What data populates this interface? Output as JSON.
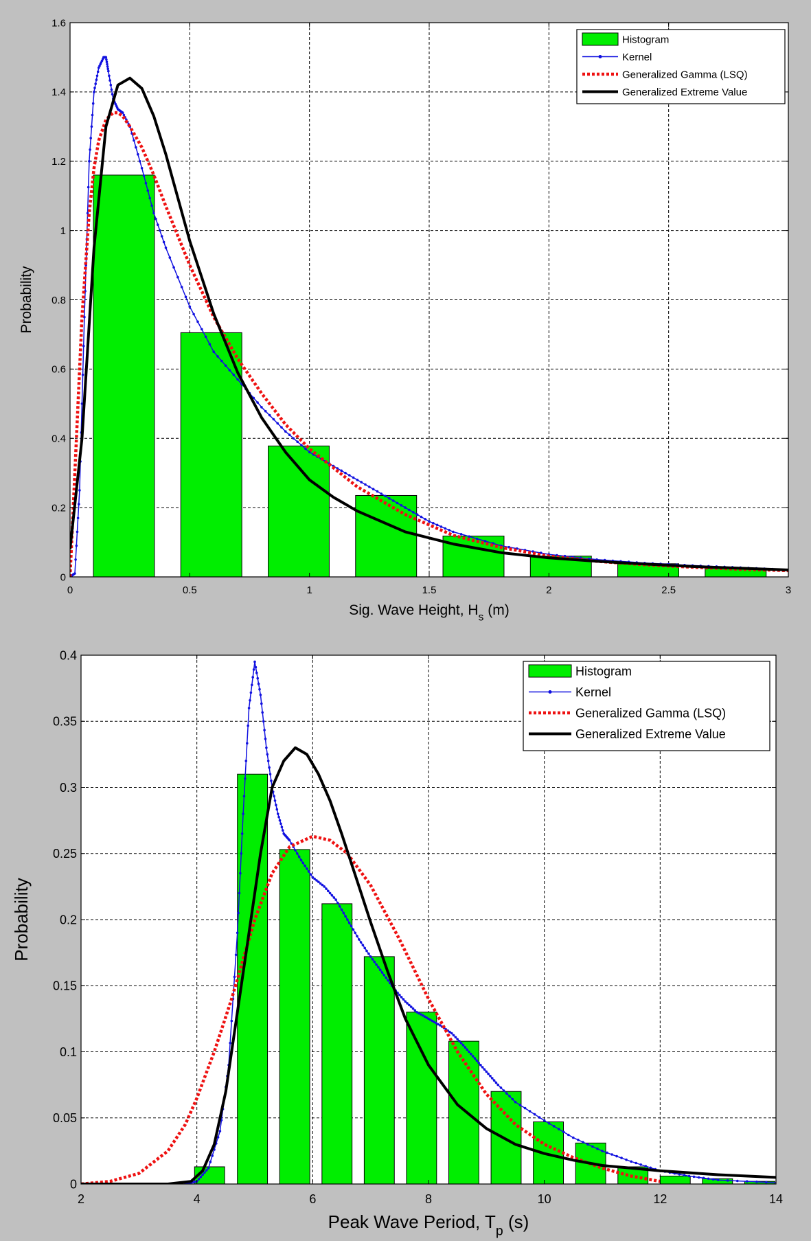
{
  "chart_data": [
    {
      "type": "bar",
      "xlabel": "Sig. Wave Height, H",
      "xlabel_sub": "s",
      "xlabel_suffix": " (m)",
      "ylabel": "Probability",
      "xlim": [
        0,
        3
      ],
      "ylim": [
        0,
        1.6
      ],
      "xticks": [
        0,
        0.5,
        1,
        1.5,
        2,
        2.5,
        3
      ],
      "xtick_labels": [
        "0",
        "0.5",
        "1",
        "1.5",
        "2",
        "2.5",
        "3"
      ],
      "yticks": [
        0,
        0.2,
        0.4,
        0.6,
        0.8,
        1,
        1.2,
        1.4,
        1.6
      ],
      "ytick_labels": [
        "0",
        "0.2",
        "0.4",
        "0.6",
        "0.8",
        "1",
        "1.2",
        "1.4",
        "1.6"
      ],
      "grid": true,
      "legend_position": "top-right",
      "legend": [
        "Histogram",
        "Kernel",
        "Generalized Gamma (LSQ)",
        "Generalized Extreme Value"
      ],
      "bar_width": 0.255,
      "bars": {
        "name": "Histogram",
        "color": "#00ee00",
        "x": [
          0.225,
          0.59,
          0.955,
          1.32,
          1.685,
          2.05,
          2.415,
          2.78
        ],
        "values": [
          1.16,
          0.705,
          0.378,
          0.235,
          0.118,
          0.06,
          0.038,
          0.025
        ]
      },
      "series": [
        {
          "name": "Kernel",
          "color": "#1010e0",
          "style": "line-dots",
          "x": [
            0,
            0.02,
            0.04,
            0.06,
            0.08,
            0.1,
            0.12,
            0.14,
            0.15,
            0.16,
            0.18,
            0.2,
            0.22,
            0.25,
            0.3,
            0.35,
            0.4,
            0.5,
            0.6,
            0.7,
            0.8,
            0.9,
            1.0,
            1.1,
            1.2,
            1.3,
            1.4,
            1.5,
            1.6,
            1.8,
            2.0,
            2.2,
            2.4,
            2.6,
            2.8,
            3.0
          ],
          "y": [
            0.0,
            0.01,
            0.25,
            0.75,
            1.2,
            1.4,
            1.47,
            1.5,
            1.5,
            1.46,
            1.38,
            1.35,
            1.34,
            1.3,
            1.18,
            1.05,
            0.95,
            0.78,
            0.65,
            0.57,
            0.49,
            0.42,
            0.36,
            0.32,
            0.28,
            0.24,
            0.2,
            0.16,
            0.13,
            0.09,
            0.065,
            0.05,
            0.04,
            0.033,
            0.027,
            0.02
          ]
        },
        {
          "name": "Generalized Gamma (LSQ)",
          "color": "#ee1111",
          "style": "dotted",
          "x": [
            0,
            0.02,
            0.05,
            0.08,
            0.1,
            0.12,
            0.15,
            0.18,
            0.2,
            0.22,
            0.25,
            0.3,
            0.35,
            0.4,
            0.5,
            0.6,
            0.7,
            0.8,
            0.9,
            1.0,
            1.2,
            1.4,
            1.6,
            1.8,
            2.0,
            2.2,
            2.4,
            2.6,
            2.8,
            3.0
          ],
          "y": [
            0.0,
            0.3,
            0.75,
            1.05,
            1.18,
            1.26,
            1.32,
            1.34,
            1.34,
            1.33,
            1.3,
            1.24,
            1.16,
            1.07,
            0.9,
            0.75,
            0.63,
            0.53,
            0.44,
            0.37,
            0.26,
            0.18,
            0.12,
            0.085,
            0.06,
            0.045,
            0.035,
            0.028,
            0.022,
            0.018
          ]
        },
        {
          "name": "Generalized Extreme Value",
          "color": "#000000",
          "style": "solid-thick",
          "x": [
            0,
            0.05,
            0.1,
            0.15,
            0.2,
            0.25,
            0.3,
            0.35,
            0.4,
            0.5,
            0.6,
            0.7,
            0.8,
            0.9,
            1.0,
            1.1,
            1.2,
            1.4,
            1.6,
            1.8,
            2.0,
            2.2,
            2.4,
            2.6,
            2.8,
            3.0
          ],
          "y": [
            0.08,
            0.4,
            0.95,
            1.3,
            1.42,
            1.44,
            1.41,
            1.33,
            1.22,
            0.97,
            0.76,
            0.59,
            0.46,
            0.36,
            0.28,
            0.23,
            0.19,
            0.13,
            0.095,
            0.07,
            0.055,
            0.045,
            0.037,
            0.03,
            0.025,
            0.02
          ]
        }
      ]
    },
    {
      "type": "bar",
      "xlabel": "Peak Wave Period, T",
      "xlabel_sub": "p",
      "xlabel_suffix": " (s)",
      "ylabel": "Probability",
      "xlim": [
        2,
        14
      ],
      "ylim": [
        0,
        0.4
      ],
      "xticks": [
        2,
        4,
        6,
        8,
        10,
        12,
        14
      ],
      "xtick_labels": [
        "2",
        "4",
        "6",
        "8",
        "10",
        "12",
        "14"
      ],
      "yticks": [
        0,
        0.05,
        0.1,
        0.15,
        0.2,
        0.25,
        0.3,
        0.35,
        0.4
      ],
      "ytick_labels": [
        "0",
        "0.05",
        "0.1",
        "0.15",
        "0.2",
        "0.25",
        "0.3",
        "0.35",
        "0.4"
      ],
      "grid": true,
      "legend_position": "top-right",
      "legend": [
        "Histogram",
        "Kernel",
        "Generalized Gamma (LSQ)",
        "Generalized Extreme Value"
      ],
      "bar_width": 0.52,
      "bars": {
        "name": "Histogram",
        "color": "#00ee00",
        "x": [
          4.22,
          4.96,
          5.69,
          6.42,
          7.15,
          7.88,
          8.61,
          9.34,
          10.07,
          10.8,
          11.53,
          12.26,
          12.99,
          13.72
        ],
        "values": [
          0.013,
          0.31,
          0.253,
          0.212,
          0.172,
          0.13,
          0.108,
          0.07,
          0.047,
          0.031,
          0.013,
          0.006,
          0.004,
          0.002
        ]
      },
      "series": [
        {
          "name": "Kernel",
          "color": "#1010e0",
          "style": "line-dots",
          "x": [
            3.8,
            4.0,
            4.2,
            4.4,
            4.55,
            4.7,
            4.8,
            4.9,
            5.0,
            5.1,
            5.2,
            5.3,
            5.4,
            5.5,
            5.6,
            5.8,
            6.0,
            6.2,
            6.4,
            6.6,
            6.8,
            7.0,
            7.2,
            7.4,
            7.6,
            7.8,
            8.0,
            8.2,
            8.4,
            8.6,
            8.8,
            9.0,
            9.2,
            9.5,
            10.0,
            10.5,
            11.0,
            11.5,
            12.0,
            12.5,
            13.0,
            14.0
          ],
          "y": [
            0.0,
            0.002,
            0.012,
            0.04,
            0.09,
            0.19,
            0.28,
            0.36,
            0.395,
            0.37,
            0.33,
            0.3,
            0.28,
            0.265,
            0.26,
            0.245,
            0.232,
            0.225,
            0.215,
            0.2,
            0.185,
            0.172,
            0.16,
            0.148,
            0.138,
            0.13,
            0.125,
            0.12,
            0.114,
            0.105,
            0.095,
            0.085,
            0.075,
            0.062,
            0.048,
            0.035,
            0.025,
            0.017,
            0.01,
            0.006,
            0.003,
            0.001
          ]
        },
        {
          "name": "Generalized Gamma (LSQ)",
          "color": "#ee1111",
          "style": "dotted",
          "x": [
            2.0,
            2.5,
            3.0,
            3.5,
            3.8,
            4.0,
            4.3,
            4.6,
            5.0,
            5.3,
            5.6,
            6.0,
            6.3,
            6.6,
            7.0,
            7.5,
            8.0,
            8.5,
            9.0,
            9.5,
            10.0,
            10.5,
            11.0,
            11.5,
            12.0
          ],
          "y": [
            0.0,
            0.002,
            0.008,
            0.025,
            0.045,
            0.065,
            0.1,
            0.14,
            0.2,
            0.235,
            0.255,
            0.263,
            0.26,
            0.25,
            0.226,
            0.185,
            0.14,
            0.1,
            0.068,
            0.045,
            0.03,
            0.02,
            0.012,
            0.006,
            0.002
          ]
        },
        {
          "name": "Generalized Extreme Value",
          "color": "#000000",
          "style": "solid-thick",
          "x": [
            2.0,
            3.0,
            3.5,
            3.9,
            4.1,
            4.3,
            4.5,
            4.7,
            4.9,
            5.1,
            5.3,
            5.5,
            5.7,
            5.9,
            6.1,
            6.3,
            6.5,
            6.8,
            7.0,
            7.3,
            7.6,
            8.0,
            8.5,
            9.0,
            9.5,
            10.0,
            10.5,
            11.0,
            12.0,
            13.0,
            14.0
          ],
          "y": [
            0.0,
            0.0,
            0.0,
            0.002,
            0.01,
            0.03,
            0.07,
            0.13,
            0.19,
            0.25,
            0.3,
            0.32,
            0.33,
            0.325,
            0.31,
            0.29,
            0.265,
            0.225,
            0.198,
            0.16,
            0.125,
            0.09,
            0.06,
            0.042,
            0.03,
            0.023,
            0.018,
            0.014,
            0.01,
            0.007,
            0.005
          ]
        }
      ]
    }
  ]
}
